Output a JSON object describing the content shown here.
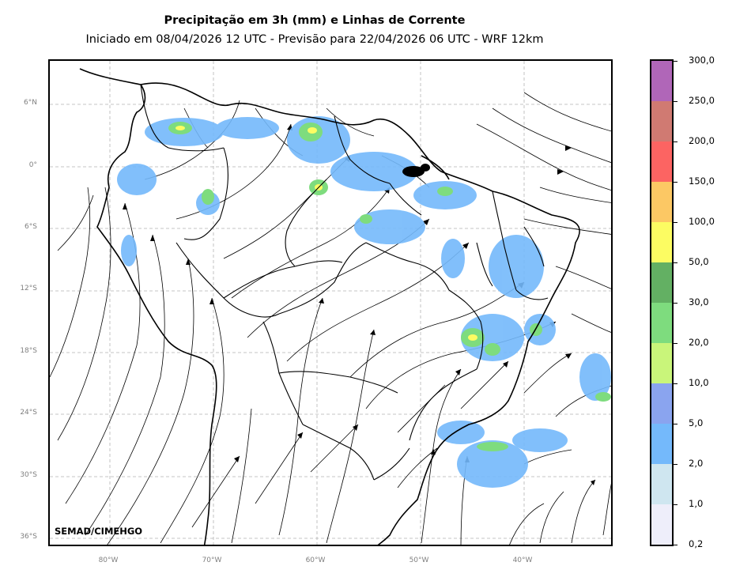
{
  "header": {
    "title": "Precipitação em 3h (mm) e Linhas de Corrente",
    "subtitle": "Iniciado em 08/04/2026 12 UTC - Previsão para 22/04/2026 06 UTC - WRF 12km"
  },
  "map": {
    "credit": "SEMAD/CIMEHGO",
    "lat_labels": [
      "6°N",
      "0°",
      "6°S",
      "12°S",
      "18°S",
      "24°S",
      "30°S",
      "36°S"
    ],
    "lon_labels": [
      "80°W",
      "70°W",
      "60°W",
      "50°W",
      "40°W"
    ],
    "gridlines": true
  },
  "colorbar": {
    "labels": [
      "0,2",
      "1,0",
      "2,0",
      "5,0",
      "10,0",
      "20,0",
      "30,0",
      "50,0",
      "100,0",
      "150,0",
      "200,0",
      "250,0",
      "300,0"
    ],
    "colors": [
      "#eeeefa",
      "#cfe6f0",
      "#74b9fb",
      "#8aa4ef",
      "#c9f57a",
      "#7edc7e",
      "#63b063",
      "#fcfc62",
      "#fcc864",
      "#fc6462",
      "#d07a72",
      "#b066b8"
    ]
  }
}
